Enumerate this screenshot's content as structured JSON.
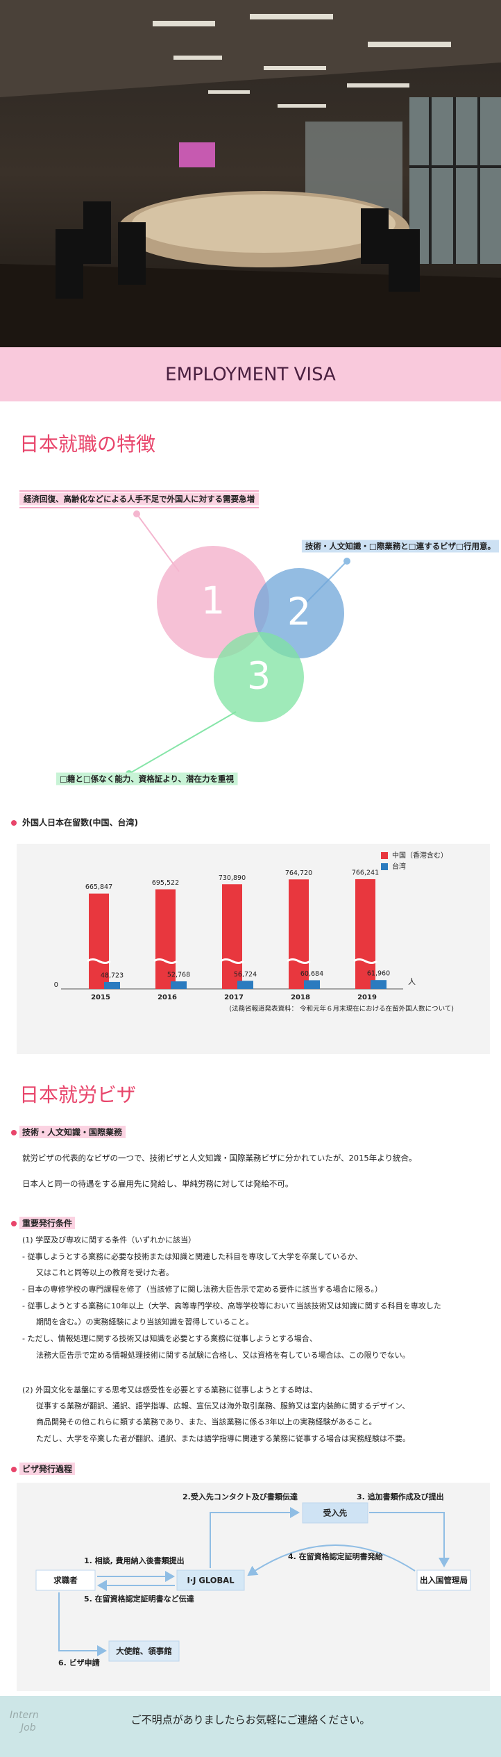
{
  "hero_title": "EMPLOYMENT VISA",
  "features": {
    "title": "日本就職の特徴",
    "points": [
      "経済回復、高齢化などによる人手不足で外国人に対する需要急増",
      "技術・人文知識・□際業務と□連するビザ□行用意。",
      "□籍と□係なく能力、資格証より、潜在力を重視"
    ],
    "numbers": [
      "1",
      "2",
      "3"
    ]
  },
  "chart_heading": "外国人日本在留数(中国、台湾)",
  "chart_data": {
    "type": "bar",
    "categories": [
      "2015",
      "2016",
      "2017",
      "2018",
      "2019"
    ],
    "series": [
      {
        "name": "中国（香港含む）",
        "color": "#e8373e",
        "values": [
          665847,
          695522,
          730890,
          764720,
          766241
        ],
        "value_labels": [
          "665,847",
          "695,522",
          "730,890",
          "764,720",
          "766,241"
        ]
      },
      {
        "name": "台湾",
        "color": "#2b7bbf",
        "values": [
          48723,
          52768,
          56724,
          60684,
          61960
        ],
        "value_labels": [
          "48,723",
          "52,768",
          "56,724",
          "60,684",
          "61,960"
        ]
      }
    ],
    "ylim": [
      0,
      800000
    ],
    "yticks": [
      0
    ],
    "ylabel": "人",
    "source": "(法務省報道発表資料： 令和元年６月末現在における在留外国人数について)"
  },
  "visa": {
    "title": "日本就労ビザ",
    "subtitle": "技術・人文知識・国際業務",
    "paragraphs": [
      "就労ビザの代表的なビザの一つで、技術ビザと人文知識・国際業務ビザに分かれていたが、2015年より統合。",
      "日本人と同一の待遇をする雇用先に発給し、単純労務に対しては発給不可。"
    ],
    "conditions_title": "重要発行条件",
    "conditions": [
      "(1) 学歴及び専攻に関する条件（いずれかに該当）",
      "- 従事しようとする業務に必要な技術または知識と関連した科目を専攻して大学を卒業しているか、",
      "又はこれと同等以上の教育を受けた者。",
      "- 日本の専修学校の専門課程を修了（当該修了に関し法務大臣告示で定める要件に該当する場合に限る。）",
      "- 従事しようとする業務に10年以上（大学、高等専門学校、高等学校等において当該技術又は知識に関する科目を専攻した",
      "期間を含む。）の実務経験により当該知識を習得していること。",
      "- ただし、情報処理に関する技術又は知識を必要とする業務に従事しようとする場合、",
      "法務大臣告示で定める情報処理技術に関する試験に合格し、又は資格を有している場合は、この限りでない。",
      "(2) 外国文化を基盤にする思考又は感受性を必要とする業務に従事しようとする時は、",
      "従事する業務が翻訳、通訳、語学指導、広報、宣伝又は海外取引業務、服飾又は室内装飾に関するデザイン、",
      "商品開発その他これらに類する業務であり、また、当該業務に係る3年以上の実務経験があること。",
      "ただし、大学を卒業した者が翻訳、通訳、または語学指導に関連する業務に従事する場合は実務経験は不要。"
    ]
  },
  "flow": {
    "title": "ビザ発行過程",
    "nodes": [
      "求職者",
      "I·J GLOBAL",
      "受入先",
      "出入国管理局",
      "大使館、領事館"
    ],
    "steps": [
      "1. 相談, 費用納入後書類提出",
      "2.受入先コンタクト及び書類伝達",
      "3. 追加書類作成及び提出",
      "4. 在留資格認定証明書発給",
      "5. 在留資格認定証明書など伝達",
      "6. ビザ申請"
    ]
  },
  "footer": {
    "logo": [
      "Intern",
      "Job"
    ],
    "text": "ご不明点がありましたらお気軽にご連絡ください。"
  }
}
